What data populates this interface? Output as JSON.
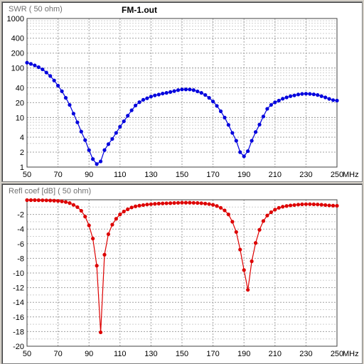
{
  "file_name": "FM-1.out",
  "chart_data": [
    {
      "type": "line",
      "title": "SWR ( 50 ohm)",
      "xlabel": "MHz",
      "y_scale": "log",
      "xlim": [
        50,
        250
      ],
      "ylim": [
        1,
        1000
      ],
      "x_ticks": [
        "50",
        "70",
        "90",
        "110",
        "130",
        "150",
        "170",
        "190",
        "210",
        "230",
        "250"
      ],
      "y_ticks": [
        "1",
        "2",
        "4",
        "10",
        "20",
        "40",
        "100",
        "200",
        "400",
        "1000"
      ],
      "grid": true,
      "series": [
        {
          "color": "#0000dd",
          "x": [
            50,
            52.5,
            55,
            57.5,
            60,
            62.5,
            65,
            67.5,
            70,
            72.5,
            75,
            77.5,
            80,
            82.5,
            85,
            87.5,
            90,
            92.5,
            95,
            97.5,
            100,
            102.5,
            105,
            107.5,
            110,
            112.5,
            115,
            117.5,
            120,
            122.5,
            125,
            127.5,
            130,
            132.5,
            135,
            137.5,
            140,
            142.5,
            145,
            147.5,
            150,
            152.5,
            155,
            157.5,
            160,
            162.5,
            165,
            167.5,
            170,
            172.5,
            175,
            177.5,
            180,
            182.5,
            185,
            187.5,
            190,
            192.5,
            195,
            197.5,
            200,
            202.5,
            205,
            207.5,
            210,
            212.5,
            215,
            217.5,
            220,
            222.5,
            225,
            227.5,
            230,
            232.5,
            235,
            237.5,
            240,
            242.5,
            245,
            247.5,
            250
          ],
          "y": [
            128,
            121,
            113,
            104,
            94,
            81,
            69,
            56,
            44,
            34,
            25,
            18,
            12,
            8,
            5.2,
            3.5,
            2.2,
            1.45,
            1.15,
            1.3,
            2.2,
            2.9,
            3.7,
            4.9,
            6.5,
            8.4,
            10.9,
            14,
            17.5,
            20.4,
            22.8,
            24.5,
            26.5,
            28,
            29.1,
            30.5,
            31.5,
            32.8,
            34.2,
            35.8,
            36.9,
            37,
            36.9,
            35.8,
            33.7,
            31.5,
            28.6,
            25,
            21.1,
            17.2,
            13.4,
            10,
            7.1,
            4.9,
            3.4,
            2,
            1.65,
            2.1,
            3.4,
            5.1,
            7.2,
            10.5,
            15,
            18,
            20.3,
            22,
            24,
            25.5,
            27,
            28,
            29.2,
            30,
            30.3,
            30,
            29.4,
            28.5,
            27,
            25.5,
            23.8,
            22.5,
            22
          ]
        }
      ]
    },
    {
      "type": "line",
      "title": "Refl coef [dB] ( 50 ohm)",
      "xlabel": "MHz",
      "xlim": [
        50,
        250
      ],
      "ylim": [
        -20,
        0
      ],
      "x_ticks": [
        "50",
        "70",
        "90",
        "110",
        "130",
        "150",
        "170",
        "190",
        "210",
        "230",
        "250"
      ],
      "y_ticks": [
        "-2",
        "-4",
        "-6",
        "-8",
        "-10",
        "-12",
        "-14",
        "-16",
        "-18",
        "-20"
      ],
      "grid": true,
      "series": [
        {
          "color": "#dd0000",
          "x": [
            50,
            52.5,
            55,
            57.5,
            60,
            62.5,
            65,
            67.5,
            70,
            72.5,
            75,
            77.5,
            80,
            82.5,
            85,
            87.5,
            90,
            92.5,
            95,
            97.5,
            100,
            102.5,
            105,
            107.5,
            110,
            112.5,
            115,
            117.5,
            120,
            122.5,
            125,
            127.5,
            130,
            132.5,
            135,
            137.5,
            140,
            142.5,
            145,
            147.5,
            150,
            152.5,
            155,
            157.5,
            160,
            162.5,
            165,
            167.5,
            170,
            172.5,
            175,
            177.5,
            180,
            182.5,
            185,
            187.5,
            190,
            192.5,
            195,
            197.5,
            200,
            202.5,
            205,
            207.5,
            210,
            212.5,
            215,
            217.5,
            220,
            222.5,
            225,
            227.5,
            230,
            232.5,
            235,
            237.5,
            240,
            242.5,
            245,
            247.5,
            250
          ],
          "y": [
            -0.05,
            -0.05,
            -0.05,
            -0.06,
            -0.07,
            -0.08,
            -0.1,
            -0.12,
            -0.16,
            -0.22,
            -0.31,
            -0.45,
            -0.7,
            -1.0,
            -1.5,
            -2.3,
            -3.5,
            -5.3,
            -9.0,
            -18.1,
            -7.5,
            -4.7,
            -3.4,
            -2.6,
            -2.0,
            -1.6,
            -1.3,
            -1.05,
            -0.9,
            -0.8,
            -0.72,
            -0.65,
            -0.6,
            -0.56,
            -0.52,
            -0.5,
            -0.48,
            -0.46,
            -0.44,
            -0.42,
            -0.4,
            -0.4,
            -0.4,
            -0.42,
            -0.44,
            -0.47,
            -0.52,
            -0.59,
            -0.69,
            -0.85,
            -1.1,
            -1.45,
            -2.0,
            -3.0,
            -4.4,
            -6.8,
            -9.6,
            -12.3,
            -8.4,
            -5.9,
            -4.1,
            -2.9,
            -2.15,
            -1.7,
            -1.35,
            -1.1,
            -0.95,
            -0.85,
            -0.77,
            -0.72,
            -0.66,
            -0.62,
            -0.6,
            -0.6,
            -0.62,
            -0.64,
            -0.68,
            -0.72,
            -0.77,
            -0.8,
            -0.82
          ]
        }
      ]
    }
  ]
}
